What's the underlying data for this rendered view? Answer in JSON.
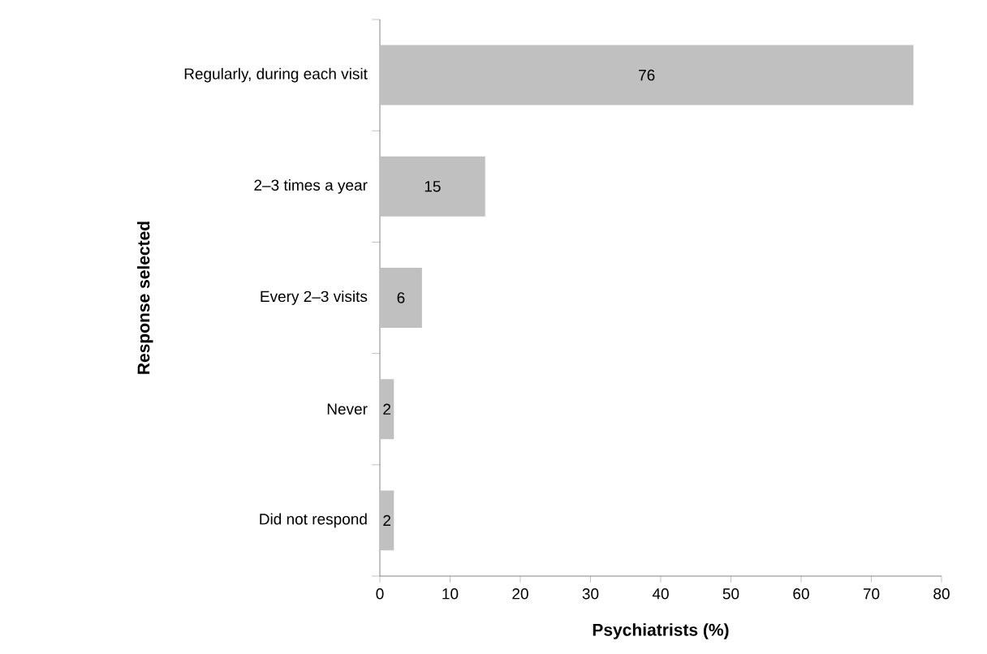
{
  "chart_data": {
    "type": "bar",
    "orientation": "horizontal",
    "xlabel": "Psychiatrists (%)",
    "ylabel": "Response selected",
    "categories": [
      "Regularly, during each visit",
      "2–3 times a year",
      "Every 2–3 visits",
      "Never",
      "Did not respond"
    ],
    "values": [
      76,
      15,
      6,
      2,
      2
    ],
    "color": "#c0c0c0",
    "data_labels": true,
    "xlim": [
      0,
      80
    ],
    "xticks": [
      0,
      10,
      20,
      30,
      40,
      50,
      60,
      70,
      80
    ],
    "grid": false,
    "legend": false
  }
}
